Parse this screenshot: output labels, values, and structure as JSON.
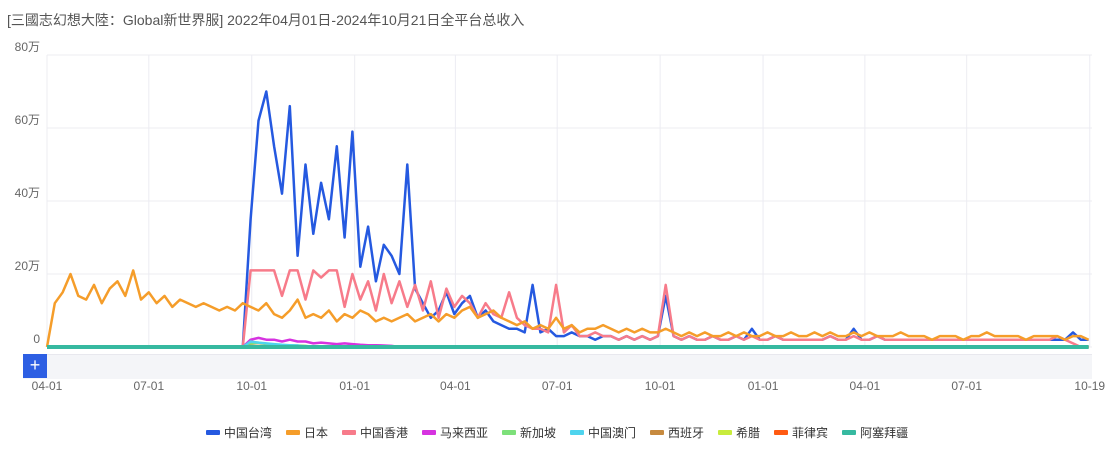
{
  "title": "[三國志幻想大陸：Global新世界服] 2022年04月01日-2024年10月21日全平台总收入",
  "slider_button": "+",
  "chart_data": {
    "type": "line",
    "title": "[三國志幻想大陸：Global新世界服] 2022年04月01日-2024年10月21日全平台总收入",
    "ylabel": "万",
    "ylim": [
      0,
      80
    ],
    "yticks": [
      {
        "v": 0,
        "label": "0"
      },
      {
        "v": 20,
        "label": "20万"
      },
      {
        "v": 40,
        "label": "40万"
      },
      {
        "v": 60,
        "label": "60万"
      },
      {
        "v": 80,
        "label": "80万"
      }
    ],
    "x_start": "2022-04-01",
    "x_end": "2024-10-21",
    "x_step_days": 7,
    "xticks": [
      {
        "date": "2022-04-01",
        "label": "04-01"
      },
      {
        "date": "2022-07-01",
        "label": "07-01"
      },
      {
        "date": "2022-10-01",
        "label": "10-01"
      },
      {
        "date": "2023-01-01",
        "label": "01-01"
      },
      {
        "date": "2023-04-01",
        "label": "04-01"
      },
      {
        "date": "2023-07-01",
        "label": "07-01"
      },
      {
        "date": "2023-10-01",
        "label": "10-01"
      },
      {
        "date": "2024-01-01",
        "label": "01-01"
      },
      {
        "date": "2024-04-01",
        "label": "04-01"
      },
      {
        "date": "2024-07-01",
        "label": "07-01"
      },
      {
        "date": "2024-10-19",
        "label": "10-19"
      }
    ],
    "grid": true,
    "legend_position": "bottom",
    "series": [
      {
        "name": "中国台湾",
        "color": "#2559e0",
        "offset": 0,
        "values": [
          0,
          0,
          0,
          0,
          0,
          0,
          0,
          0,
          0,
          0,
          0,
          0,
          0,
          0,
          0,
          0,
          0,
          0,
          0,
          0,
          0,
          0,
          0,
          0,
          0,
          0,
          35,
          62,
          70,
          55,
          42,
          66,
          25,
          50,
          31,
          45,
          35,
          55,
          30,
          59,
          22,
          33,
          18,
          28,
          25,
          20,
          50,
          16,
          12,
          8,
          10,
          15,
          9,
          12,
          14,
          8,
          10,
          7,
          6,
          5,
          5,
          4,
          17,
          4,
          5,
          3,
          3,
          4,
          3,
          3,
          2,
          3,
          3,
          2,
          3,
          2,
          3,
          2,
          3,
          14,
          3,
          2,
          3,
          2,
          2,
          3,
          2,
          2,
          3,
          2,
          5,
          2,
          2,
          3,
          2,
          2,
          2,
          2,
          2,
          2,
          3,
          2,
          2,
          5,
          2,
          2,
          3,
          2,
          2,
          2,
          2,
          2,
          2,
          2,
          2,
          2,
          2,
          2,
          2,
          2,
          2,
          2,
          2,
          2,
          2,
          2,
          2,
          2,
          2,
          2,
          2,
          4,
          2,
          2
        ]
      },
      {
        "name": "日本",
        "color": "#f59d2a",
        "offset": 0,
        "values": [
          0,
          12,
          15,
          20,
          14,
          13,
          17,
          12,
          16,
          18,
          14,
          21,
          13,
          15,
          12,
          14,
          11,
          13,
          12,
          11,
          12,
          11,
          10,
          11,
          10,
          12,
          11,
          10,
          12,
          9,
          8,
          10,
          13,
          8,
          9,
          8,
          10,
          7,
          9,
          8,
          10,
          9,
          7,
          8,
          7,
          8,
          9,
          7,
          8,
          9,
          7,
          9,
          8,
          10,
          11,
          8,
          9,
          10,
          8,
          7,
          6,
          7,
          5,
          6,
          5,
          8,
          5,
          6,
          4,
          5,
          5,
          6,
          5,
          4,
          5,
          4,
          5,
          4,
          4,
          5,
          4,
          3,
          4,
          3,
          4,
          3,
          3,
          4,
          3,
          4,
          3,
          3,
          4,
          3,
          3,
          4,
          3,
          3,
          4,
          3,
          4,
          3,
          3,
          4,
          3,
          4,
          3,
          3,
          3,
          4,
          3,
          3,
          3,
          2,
          3,
          3,
          3,
          2,
          3,
          3,
          4,
          3,
          3,
          3,
          3,
          2,
          3,
          3,
          3,
          3,
          2,
          3,
          3,
          2
        ]
      },
      {
        "name": "中国香港",
        "color": "#f77b8a",
        "offset": 26,
        "values": [
          21,
          21,
          21,
          21,
          14,
          21,
          21,
          13,
          21,
          19,
          21,
          21,
          11,
          20,
          13,
          18,
          10,
          20,
          12,
          18,
          11,
          17,
          10,
          18,
          8,
          16,
          11,
          14,
          12,
          8,
          12,
          9,
          8,
          15,
          8,
          6,
          5,
          5,
          4,
          17,
          4,
          6,
          3,
          3,
          4,
          3,
          3,
          2,
          3,
          2,
          3,
          2,
          3,
          17,
          3,
          2,
          3,
          2,
          2,
          3,
          2,
          2,
          3,
          2,
          3,
          2,
          2,
          3,
          2,
          2,
          2,
          2,
          2,
          2,
          3,
          2,
          2,
          3,
          2,
          2,
          3,
          2,
          2,
          2,
          2,
          2,
          2,
          2,
          2,
          2,
          2,
          2,
          2,
          2,
          2,
          2,
          2,
          2,
          2,
          2,
          2,
          2,
          2,
          3,
          2,
          1
        ]
      },
      {
        "name": "马来西亚",
        "color": "#d633e0",
        "offset": 26,
        "values": [
          2,
          2.5,
          2,
          2,
          1.5,
          2,
          1.5,
          1.5,
          1,
          1.2,
          1,
          0.8,
          1,
          0.8,
          0.6,
          0.5,
          0.5,
          0.4,
          0.3
        ]
      },
      {
        "name": "新加坡",
        "color": "#7de07a",
        "offset": 26,
        "values": [
          1,
          1.2,
          0.8,
          0.6,
          0.5,
          0.5,
          0.4,
          0.3
        ]
      },
      {
        "name": "中国澳门",
        "color": "#4fd4ee",
        "offset": 26,
        "values": [
          1.5,
          1.2,
          1,
          0.8,
          0.6,
          0.5,
          0.4
        ]
      },
      {
        "name": "西班牙",
        "color": "#c78a3f",
        "offset": 26,
        "values": [
          0.3,
          0.3,
          0.2
        ]
      },
      {
        "name": "希腊",
        "color": "#c8ec3c",
        "offset": 26,
        "values": [
          0.2,
          0.2
        ]
      },
      {
        "name": "菲律宾",
        "color": "#ff5a12",
        "offset": 26,
        "values": [
          0.2,
          0.2
        ]
      },
      {
        "name": "阿塞拜疆",
        "color": "#36b9a0",
        "offset": 0,
        "values": [
          0
        ]
      }
    ]
  }
}
